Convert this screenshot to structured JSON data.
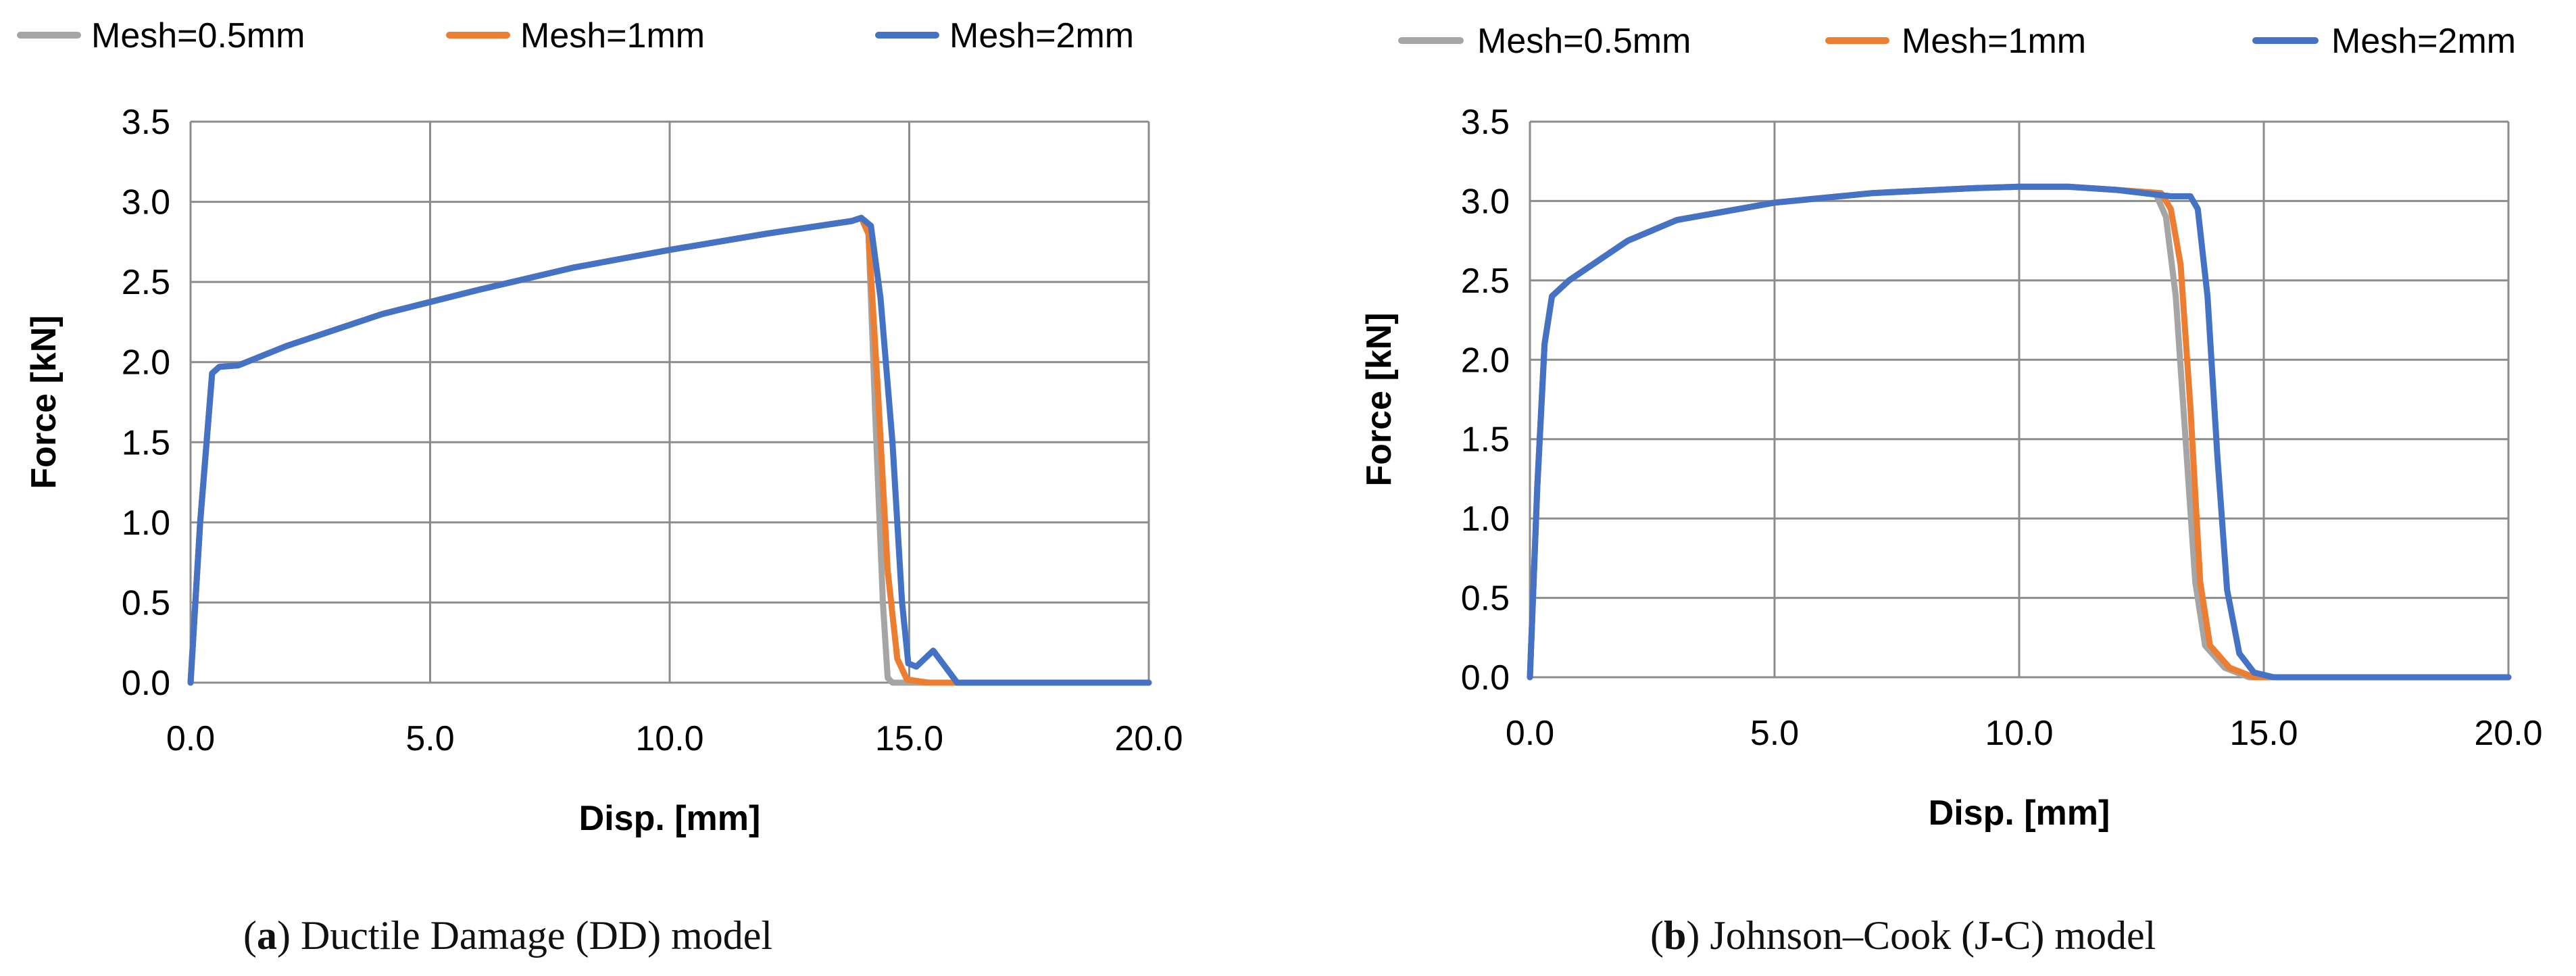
{
  "colors": {
    "mesh_05": "#A5A5A5",
    "mesh_1": "#ED7D31",
    "mesh_2": "#4472C4",
    "grid": "#8C8C8C",
    "text": "#000000"
  },
  "chart_data": [
    {
      "type": "line",
      "caption_letter": "a",
      "caption_rest": " Ductile Damage (DD) model",
      "xlabel": "Disp. [mm]",
      "ylabel": "Force [kN]",
      "xlim": [
        0,
        20
      ],
      "ylim": [
        0,
        3.5
      ],
      "xticks": [
        "0.0",
        "5.0",
        "10.0",
        "15.0",
        "20.0"
      ],
      "yticks": [
        "0.0",
        "0.5",
        "1.0",
        "1.5",
        "2.0",
        "2.5",
        "3.0",
        "3.5"
      ],
      "grid": true,
      "legend": "top",
      "series": [
        {
          "name": "Mesh=0.5mm",
          "color": "#A5A5A5",
          "points": [
            [
              0,
              0
            ],
            [
              0.2,
              1.0
            ],
            [
              0.45,
              1.93
            ],
            [
              0.6,
              1.97
            ],
            [
              1.0,
              1.98
            ],
            [
              2,
              2.1
            ],
            [
              4,
              2.3
            ],
            [
              6,
              2.45
            ],
            [
              8,
              2.59
            ],
            [
              10,
              2.7
            ],
            [
              12,
              2.8
            ],
            [
              13.8,
              2.88
            ],
            [
              14.0,
              2.9
            ],
            [
              14.15,
              2.8
            ],
            [
              14.3,
              1.6
            ],
            [
              14.45,
              0.5
            ],
            [
              14.55,
              0.03
            ],
            [
              14.65,
              0
            ],
            [
              20,
              0
            ]
          ]
        },
        {
          "name": "Mesh=1mm",
          "color": "#ED7D31",
          "points": [
            [
              0,
              0
            ],
            [
              0.2,
              1.0
            ],
            [
              0.45,
              1.93
            ],
            [
              0.6,
              1.97
            ],
            [
              1.0,
              1.98
            ],
            [
              2,
              2.1
            ],
            [
              4,
              2.3
            ],
            [
              6,
              2.45
            ],
            [
              8,
              2.59
            ],
            [
              10,
              2.7
            ],
            [
              12,
              2.8
            ],
            [
              13.8,
              2.88
            ],
            [
              14.0,
              2.9
            ],
            [
              14.15,
              2.8
            ],
            [
              14.35,
              1.8
            ],
            [
              14.55,
              0.7
            ],
            [
              14.75,
              0.15
            ],
            [
              14.95,
              0.02
            ],
            [
              15.4,
              0
            ],
            [
              20,
              0
            ]
          ]
        },
        {
          "name": "Mesh=2mm",
          "color": "#4472C4",
          "points": [
            [
              0,
              0
            ],
            [
              0.2,
              1.0
            ],
            [
              0.45,
              1.93
            ],
            [
              0.6,
              1.97
            ],
            [
              1.0,
              1.98
            ],
            [
              2,
              2.1
            ],
            [
              4,
              2.3
            ],
            [
              6,
              2.45
            ],
            [
              8,
              2.59
            ],
            [
              10,
              2.7
            ],
            [
              12,
              2.8
            ],
            [
              13.8,
              2.88
            ],
            [
              14.0,
              2.9
            ],
            [
              14.2,
              2.85
            ],
            [
              14.4,
              2.4
            ],
            [
              14.65,
              1.5
            ],
            [
              14.85,
              0.5
            ],
            [
              14.98,
              0.12
            ],
            [
              15.15,
              0.1
            ],
            [
              15.5,
              0.2
            ],
            [
              15.8,
              0.08
            ],
            [
              16.0,
              0
            ],
            [
              20,
              0
            ]
          ]
        }
      ]
    },
    {
      "type": "line",
      "caption_letter": "b",
      "caption_rest": " Johnson–Cook (J-C) model",
      "xlabel": "Disp. [mm]",
      "ylabel": "Force [kN]",
      "xlim": [
        0,
        20
      ],
      "ylim": [
        0,
        3.5
      ],
      "xticks": [
        "0.0",
        "5.0",
        "10.0",
        "15.0",
        "20.0"
      ],
      "yticks": [
        "0.0",
        "0.5",
        "1.0",
        "1.5",
        "2.0",
        "2.5",
        "3.0",
        "3.5"
      ],
      "grid": true,
      "legend": "top",
      "series": [
        {
          "name": "Mesh=0.5mm",
          "color": "#A5A5A5",
          "points": [
            [
              0,
              0
            ],
            [
              0.15,
              1.2
            ],
            [
              0.3,
              2.1
            ],
            [
              0.45,
              2.4
            ],
            [
              0.8,
              2.5
            ],
            [
              2,
              2.75
            ],
            [
              3,
              2.88
            ],
            [
              5,
              2.99
            ],
            [
              7,
              3.05
            ],
            [
              9,
              3.08
            ],
            [
              10,
              3.09
            ],
            [
              11,
              3.09
            ],
            [
              12,
              3.07
            ],
            [
              12.8,
              3.04
            ],
            [
              13.0,
              2.9
            ],
            [
              13.2,
              2.4
            ],
            [
              13.4,
              1.5
            ],
            [
              13.6,
              0.6
            ],
            [
              13.8,
              0.2
            ],
            [
              14.2,
              0.06
            ],
            [
              14.7,
              0.0
            ],
            [
              20,
              0
            ]
          ]
        },
        {
          "name": "Mesh=1mm",
          "color": "#ED7D31",
          "points": [
            [
              0,
              0
            ],
            [
              0.15,
              1.2
            ],
            [
              0.3,
              2.1
            ],
            [
              0.45,
              2.4
            ],
            [
              0.8,
              2.5
            ],
            [
              2,
              2.75
            ],
            [
              3,
              2.88
            ],
            [
              5,
              2.99
            ],
            [
              7,
              3.05
            ],
            [
              9,
              3.08
            ],
            [
              10,
              3.09
            ],
            [
              11,
              3.09
            ],
            [
              12,
              3.07
            ],
            [
              12.9,
              3.05
            ],
            [
              13.1,
              2.95
            ],
            [
              13.3,
              2.6
            ],
            [
              13.5,
              1.7
            ],
            [
              13.7,
              0.6
            ],
            [
              13.9,
              0.2
            ],
            [
              14.3,
              0.06
            ],
            [
              14.8,
              0.0
            ],
            [
              20,
              0
            ]
          ]
        },
        {
          "name": "Mesh=2mm",
          "color": "#4472C4",
          "points": [
            [
              0,
              0
            ],
            [
              0.15,
              1.2
            ],
            [
              0.3,
              2.1
            ],
            [
              0.45,
              2.4
            ],
            [
              0.8,
              2.5
            ],
            [
              2,
              2.75
            ],
            [
              3,
              2.88
            ],
            [
              5,
              2.99
            ],
            [
              7,
              3.05
            ],
            [
              9,
              3.08
            ],
            [
              10,
              3.09
            ],
            [
              11,
              3.09
            ],
            [
              12,
              3.07
            ],
            [
              13.1,
              3.03
            ],
            [
              13.5,
              3.03
            ],
            [
              13.65,
              2.95
            ],
            [
              13.85,
              2.4
            ],
            [
              14.05,
              1.4
            ],
            [
              14.25,
              0.55
            ],
            [
              14.5,
              0.15
            ],
            [
              14.8,
              0.03
            ],
            [
              15.2,
              0
            ],
            [
              20,
              0
            ]
          ]
        }
      ]
    }
  ]
}
